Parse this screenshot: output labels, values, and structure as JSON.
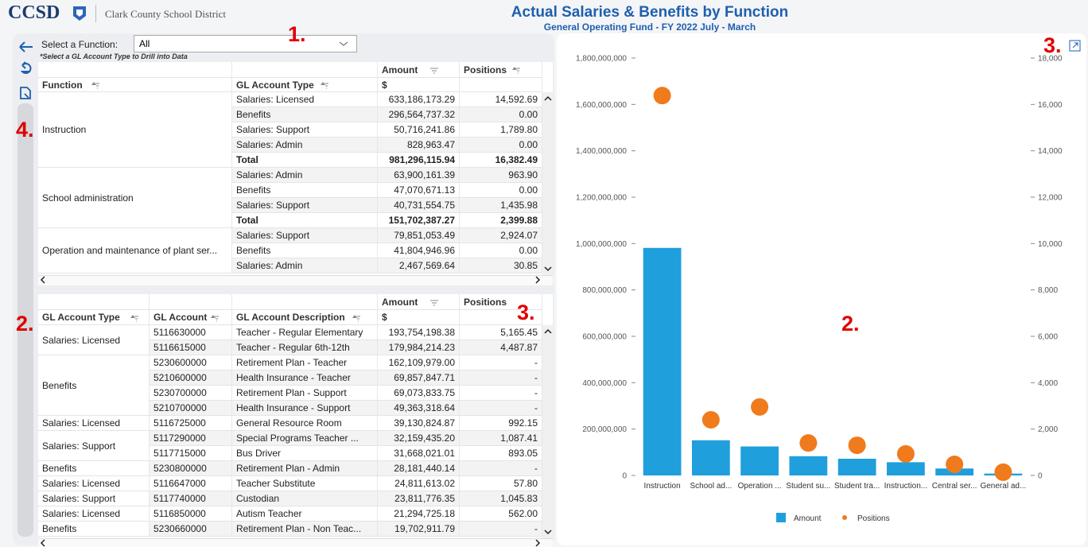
{
  "header": {
    "logo": "CCSD",
    "org": "Clark County School District",
    "title": "Actual Salaries & Benefits by Function",
    "subtitle": "General Operating Fund - FY 2022 July - March"
  },
  "filter": {
    "label": "Select a Function:",
    "value": "All",
    "note": "*Select a GL Account Type to Drill into Data"
  },
  "table1": {
    "columns": [
      "Function",
      "GL Account Type",
      "Amount",
      "Positions"
    ],
    "unit": "$",
    "groups": [
      {
        "function": "Instruction",
        "rows": [
          [
            "Salaries: Licensed",
            "633,186,173.29",
            "14,592.69"
          ],
          [
            "Benefits",
            "296,564,737.32",
            "0.00"
          ],
          [
            "Salaries: Support",
            "50,716,241.86",
            "1,789.80"
          ],
          [
            "Salaries: Admin",
            "828,963.47",
            "0.00"
          ]
        ],
        "total": [
          "Total",
          "981,296,115.94",
          "16,382.49"
        ]
      },
      {
        "function": "School administration",
        "rows": [
          [
            "Salaries: Admin",
            "63,900,161.39",
            "963.90"
          ],
          [
            "Benefits",
            "47,070,671.13",
            "0.00"
          ],
          [
            "Salaries: Support",
            "40,731,554.75",
            "1,435.98"
          ]
        ],
        "total": [
          "Total",
          "151,702,387.27",
          "2,399.88"
        ]
      },
      {
        "function": "Operation and maintenance of plant ser...",
        "rows": [
          [
            "Salaries: Support",
            "79,851,053.49",
            "2,924.07"
          ],
          [
            "Benefits",
            "41,804,946.96",
            "0.00"
          ],
          [
            "Salaries: Admin",
            "2,467,569.64",
            "30.85"
          ]
        ]
      }
    ]
  },
  "table2": {
    "columns": [
      "GL Account Type",
      "GL Account",
      "GL Account Description",
      "Amount",
      "Positions"
    ],
    "unit": "$",
    "groups": [
      {
        "type": "Salaries: Licensed",
        "rows": [
          [
            "5116630000",
            "Teacher - Regular Elementary",
            "193,754,198.38",
            "5,165.45"
          ],
          [
            "5116615000",
            "Teacher - Regular 6th-12th",
            "179,984,214.23",
            "4,487.87"
          ]
        ]
      },
      {
        "type": "Benefits",
        "rows": [
          [
            "5230600000",
            "Retirement Plan - Teacher",
            "162,109,979.00",
            "-"
          ],
          [
            "5210600000",
            "Health Insurance - Teacher",
            "69,857,847.71",
            "-"
          ],
          [
            "5230700000",
            "Retirement Plan - Support",
            "69,073,833.75",
            "-"
          ],
          [
            "5210700000",
            "Health Insurance - Support",
            "49,363,318.64",
            "-"
          ]
        ]
      },
      {
        "type": "Salaries: Licensed",
        "rows": [
          [
            "5116725000",
            "General Resource Room",
            "39,130,824.87",
            "992.15"
          ]
        ]
      },
      {
        "type": "Salaries: Support",
        "rows": [
          [
            "5117290000",
            "Special Programs Teacher ...",
            "32,159,435.20",
            "1,087.41"
          ],
          [
            "5117715000",
            "Bus Driver",
            "31,668,021.01",
            "893.05"
          ]
        ]
      },
      {
        "type": "Benefits",
        "rows": [
          [
            "5230800000",
            "Retirement Plan - Admin",
            "28,181,440.14",
            "-"
          ]
        ]
      },
      {
        "type": "Salaries: Licensed",
        "rows": [
          [
            "5116647000",
            "Teacher Substitute",
            "24,811,613.02",
            "57.80"
          ]
        ]
      },
      {
        "type": "Salaries: Support",
        "rows": [
          [
            "5117740000",
            "Custodian",
            "23,811,776.35",
            "1,045.83"
          ]
        ]
      },
      {
        "type": "Salaries: Licensed",
        "rows": [
          [
            "5116850000",
            "Autism Teacher",
            "21,294,725.18",
            "562.00"
          ]
        ]
      },
      {
        "type": "Benefits",
        "rows": [
          [
            "5230660000",
            "Retirement Plan - Non Teac...",
            "19,702,911.79",
            "-"
          ]
        ]
      }
    ]
  },
  "chart_data": {
    "type": "bar",
    "categories": [
      "Instruction",
      "School ad...",
      "Operation ...",
      "Student su...",
      "Student tra...",
      "Instruction...",
      "Central ser...",
      "General ad..."
    ],
    "series": [
      {
        "name": "Amount",
        "type": "bar",
        "color": "#1f9fdc",
        "values": [
          981296115.94,
          151702387.27,
          125000000,
          83000000,
          72000000,
          57000000,
          30000000,
          8000000
        ]
      },
      {
        "name": "Positions",
        "type": "scatter",
        "axis": "y2",
        "color": "#f07b1c",
        "values": [
          16382.49,
          2399.88,
          2955,
          1400,
          1300,
          930,
          480,
          140
        ]
      }
    ],
    "ylim": [
      0,
      1800000000
    ],
    "yticks": [
      0,
      {
        "value": 200000000,
        "label": "200,000,000"
      },
      {
        "value": 400000000,
        "label": "400,000,000"
      },
      {
        "value": 600000000,
        "label": "600,000,000"
      },
      {
        "value": 800000000,
        "label": "800,000,000"
      },
      {
        "value": 1000000000,
        "label": "1,000,000,000"
      },
      {
        "value": 1200000000,
        "label": "1,200,000,000"
      },
      {
        "value": 1400000000,
        "label": "1,400,000,000"
      },
      {
        "value": 1600000000,
        "label": "1,600,000,000"
      },
      {
        "value": 1800000000,
        "label": "1,800,000,000"
      }
    ],
    "y2lim": [
      0,
      18000
    ],
    "y2ticks": [
      0,
      {
        "value": 2000,
        "label": "2,000"
      },
      {
        "value": 4000,
        "label": "4,000"
      },
      {
        "value": 6000,
        "label": "6,000"
      },
      {
        "value": 8000,
        "label": "8,000"
      },
      {
        "value": 10000,
        "label": "10,000"
      },
      {
        "value": 12000,
        "label": "12,000"
      },
      {
        "value": 14000,
        "label": "14,000"
      },
      {
        "value": 16000,
        "label": "16,000"
      },
      {
        "value": 18000,
        "label": "18,000"
      }
    ],
    "legend": "bottom"
  },
  "annotations": [
    "1.",
    "2.",
    "3.",
    "4.",
    "2.",
    "3."
  ]
}
